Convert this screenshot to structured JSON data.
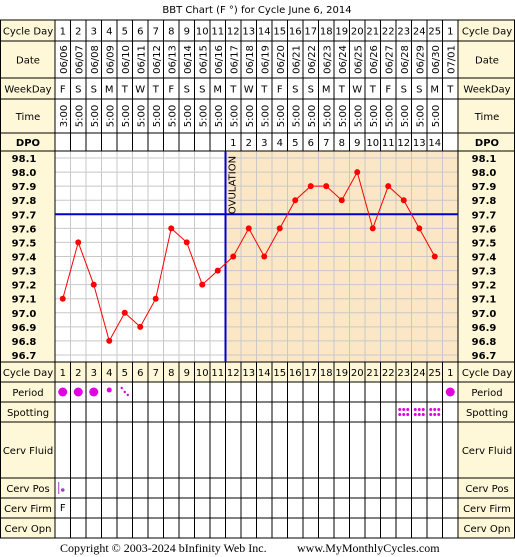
{
  "chart_data": {
    "type": "line",
    "title": "BBT Chart (F °) for Cycle June 6, 2014",
    "row_labels": {
      "cycle_day": "Cycle Day",
      "date": "Date",
      "weekday": "WeekDay",
      "time": "Time",
      "dpo": "DPO",
      "period": "Period",
      "spotting": "Spotting",
      "cerv_fluid": "Cerv Fluid",
      "cerv_pos": "Cerv Pos",
      "cerv_firm": "Cerv Firm",
      "cerv_opn": "Cerv Opn"
    },
    "cycle_days": [
      "1",
      "2",
      "3",
      "4",
      "5",
      "6",
      "7",
      "8",
      "9",
      "10",
      "11",
      "12",
      "13",
      "14",
      "15",
      "16",
      "17",
      "18",
      "19",
      "20",
      "21",
      "22",
      "23",
      "24",
      "25",
      "1"
    ],
    "dates": [
      "06/06",
      "06/07",
      "06/08",
      "06/09",
      "06/10",
      "06/11",
      "06/12",
      "06/13",
      "06/14",
      "06/15",
      "06/16",
      "06/17",
      "06/18",
      "06/19",
      "06/20",
      "06/21",
      "06/22",
      "06/23",
      "06/24",
      "06/25",
      "06/26",
      "06/27",
      "06/28",
      "06/29",
      "06/30",
      "07/01"
    ],
    "weekdays": [
      "F",
      "S",
      "S",
      "M",
      "T",
      "W",
      "T",
      "F",
      "S",
      "S",
      "M",
      "T",
      "W",
      "T",
      "F",
      "S",
      "S",
      "M",
      "T",
      "W",
      "T",
      "F",
      "S",
      "S",
      "M",
      "T"
    ],
    "times": [
      "3:00",
      "5:00",
      "5:00",
      "5:00",
      "5:00",
      "5:00",
      "5:00",
      "5:00",
      "5:00",
      "5:00",
      "5:00",
      "5:00",
      "5:00",
      "5:00",
      "5:00",
      "5:00",
      "5:00",
      "5:00",
      "5:00",
      "5:00",
      "5:00",
      "5:00",
      "5:00",
      "5:00",
      "5:00",
      ""
    ],
    "dpo": [
      "",
      "",
      "",
      "",
      "",
      "",
      "",
      "",
      "",
      "",
      "",
      "1",
      "2",
      "3",
      "4",
      "5",
      "6",
      "7",
      "8",
      "9",
      "10",
      "11",
      "12",
      "13",
      "14",
      ""
    ],
    "y_ticks": [
      "98.1",
      "98.0",
      "97.9",
      "97.8",
      "97.7",
      "97.6",
      "97.5",
      "97.4",
      "97.3",
      "97.2",
      "97.1",
      "97.0",
      "96.9",
      "96.8",
      "96.7"
    ],
    "ylim": [
      96.7,
      98.1
    ],
    "temperatures": [
      97.1,
      97.5,
      97.2,
      96.8,
      97.0,
      96.9,
      97.1,
      97.6,
      97.5,
      97.2,
      97.3,
      97.4,
      97.6,
      97.4,
      97.6,
      97.8,
      97.9,
      97.9,
      97.8,
      98.0,
      97.6,
      97.9,
      97.8,
      97.6,
      97.4,
      null
    ],
    "coverline": 97.7,
    "ovulation_day": 11,
    "ovulation_label": "OVULATION",
    "period": [
      "heavy",
      "heavy",
      "heavy",
      "light",
      "spotty",
      "",
      "",
      "",
      "",
      "",
      "",
      "",
      "",
      "",
      "",
      "",
      "",
      "",
      "",
      "",
      "",
      "",
      "",
      "",
      "",
      "heavy"
    ],
    "spotting_days": [
      23,
      24,
      25
    ],
    "cerv_pos_day1": "low",
    "cerv_firm_day1": "F",
    "colors": {
      "line": "#ff0000",
      "coverline": "#0000cc",
      "ovulation": "#0000cc",
      "pre_ovulation_bg": "#ffffff",
      "post_ovulation_bg": "#fbe7c6",
      "label_bg": "#fff8d8",
      "period": "#e000e0",
      "grid": "#c8c8c8"
    },
    "grid": true
  },
  "footer": {
    "copyright": "Copyright © 2003-2024 bInfinity Web Inc.",
    "site": "www.MyMonthlyCycles.com"
  }
}
